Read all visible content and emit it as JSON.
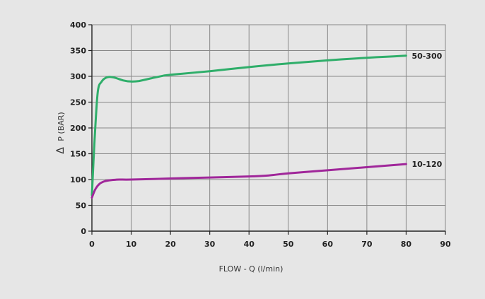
{
  "chart_data": {
    "type": "line",
    "xlabel": "FLOW - Q (l/min)",
    "ylabel": "P (BAR)",
    "ylabel_symbol": "Δ",
    "xlim": [
      0,
      90
    ],
    "ylim": [
      0,
      400
    ],
    "xticks": [
      0,
      10,
      20,
      30,
      40,
      50,
      60,
      70,
      80,
      90
    ],
    "yticks": [
      0,
      50,
      100,
      150,
      200,
      250,
      300,
      350,
      400
    ],
    "grid": true,
    "legend": "inline-right",
    "series": [
      {
        "name": "50-300",
        "color": "#2fae6a",
        "x": [
          0,
          0.7,
          1.5,
          2.5,
          3.5,
          4.5,
          6,
          8,
          10,
          12,
          15,
          18,
          20,
          30,
          40,
          50,
          60,
          70,
          75,
          80
        ],
        "y": [
          70,
          180,
          270,
          290,
          297,
          299,
          297,
          292,
          290,
          291,
          296,
          301,
          303,
          310,
          318,
          325,
          331,
          336,
          338,
          340
        ]
      },
      {
        "name": "10-120",
        "color": "#a0279a",
        "x": [
          0,
          0.5,
          1,
          2,
          3,
          4,
          5,
          7,
          10,
          20,
          30,
          40,
          45,
          50,
          60,
          70,
          80
        ],
        "y": [
          65,
          75,
          83,
          92,
          96,
          98,
          99,
          100,
          100,
          102,
          104,
          106,
          108,
          112,
          118,
          124,
          130
        ]
      }
    ]
  }
}
